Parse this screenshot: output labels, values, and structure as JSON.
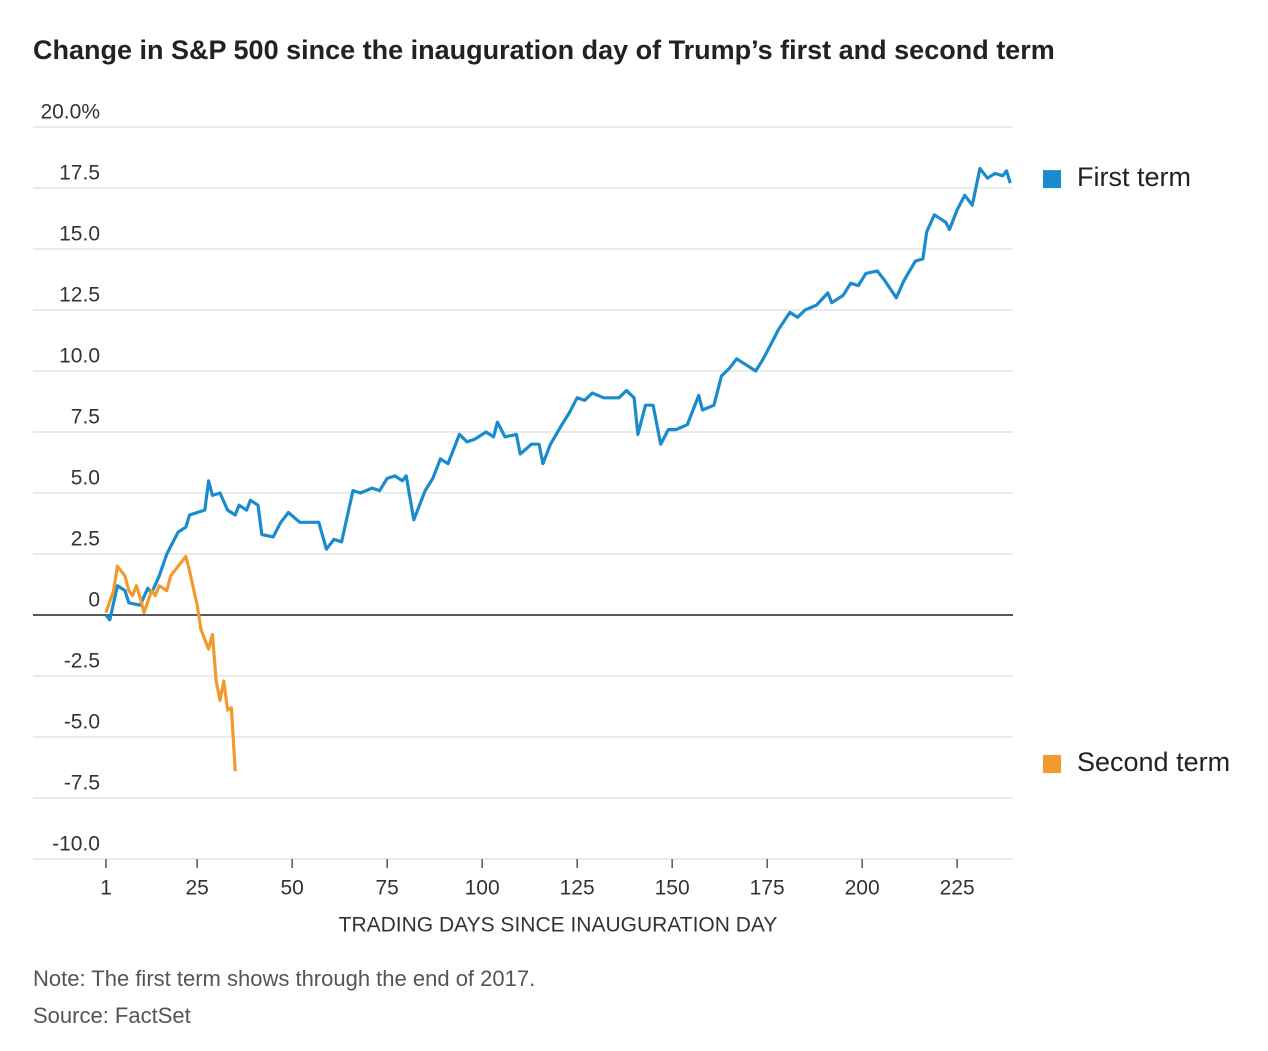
{
  "chart_data": {
    "type": "line",
    "title": "Change in S&P 500 since the inauguration day of Trump’s first and second term",
    "x_label": "TRADING DAYS SINCE INAUGURATION DAY",
    "notes": [
      "Note: The first term shows through the end of 2017.",
      "Source: FactSet"
    ],
    "xlim": [
      -18.2,
      239.7
    ],
    "xticks": [
      1,
      25,
      50,
      75,
      100,
      125,
      150,
      175,
      200,
      225
    ],
    "ylim": [
      -10,
      20
    ],
    "yticks": [
      {
        "value": 20,
        "label": "20.0%"
      },
      17.5,
      {
        "value": 15,
        "label": "15.0"
      },
      12.5,
      {
        "value": 10,
        "label": "10.0"
      },
      7.5,
      {
        "value": 5,
        "label": "5.0"
      },
      2.5,
      0,
      -2.5,
      {
        "value": -5,
        "label": "-5.0"
      },
      -7.5,
      {
        "value": -10,
        "label": "-10.0"
      }
    ],
    "grid": true,
    "legend": "right",
    "series": [
      {
        "name": "First term",
        "color": "#1a8bcc",
        "x": [
          1,
          2,
          4,
          6,
          7,
          10,
          12,
          13,
          15,
          17,
          20,
          22,
          23,
          25,
          27,
          28,
          29,
          31,
          33,
          35,
          36,
          38,
          39,
          41,
          42,
          45,
          47,
          49,
          52,
          54,
          57,
          59,
          61,
          63,
          64,
          66,
          68,
          71,
          73,
          75,
          77,
          79,
          80,
          82,
          85,
          87,
          89,
          91,
          94,
          96,
          98,
          101,
          103,
          104,
          106,
          109,
          110,
          113,
          115,
          116,
          118,
          121,
          123,
          125,
          127,
          129,
          132,
          134,
          136,
          138,
          140,
          141,
          143,
          145,
          147,
          149,
          151,
          154,
          157,
          158,
          161,
          163,
          165,
          167,
          169,
          172,
          174,
          176,
          178,
          181,
          183,
          185,
          188,
          191,
          192,
          195,
          197,
          199,
          201,
          204,
          206,
          209,
          211,
          214,
          216,
          217,
          219,
          222,
          223,
          225,
          227,
          229,
          231,
          233,
          235,
          237,
          238,
          239
        ],
        "values": [
          0,
          -0.2,
          1.2,
          1.0,
          0.5,
          0.4,
          1.1,
          0.9,
          1.6,
          2.5,
          3.4,
          3.6,
          4.1,
          4.2,
          4.3,
          5.5,
          4.9,
          5.0,
          4.3,
          4.1,
          4.5,
          4.3,
          4.7,
          4.5,
          3.3,
          3.2,
          3.8,
          4.2,
          3.8,
          3.8,
          3.8,
          2.7,
          3.1,
          3.0,
          3.7,
          5.1,
          5.0,
          5.2,
          5.1,
          5.6,
          5.7,
          5.5,
          5.7,
          3.9,
          5.1,
          5.6,
          6.4,
          6.2,
          7.4,
          7.1,
          7.2,
          7.5,
          7.3,
          7.9,
          7.3,
          7.4,
          6.6,
          7.0,
          7.0,
          6.2,
          7.0,
          7.8,
          8.3,
          8.9,
          8.8,
          9.1,
          8.9,
          8.9,
          8.9,
          9.2,
          8.9,
          7.4,
          8.6,
          8.6,
          7.0,
          7.6,
          7.6,
          7.8,
          9.0,
          8.4,
          8.6,
          9.8,
          10.1,
          10.5,
          10.3,
          10.0,
          10.5,
          11.1,
          11.7,
          12.4,
          12.2,
          12.5,
          12.7,
          13.2,
          12.8,
          13.1,
          13.6,
          13.5,
          14.0,
          14.1,
          13.7,
          13.0,
          13.7,
          14.5,
          14.6,
          15.7,
          16.4,
          16.1,
          15.8,
          16.6,
          17.2,
          16.8,
          18.3,
          17.9,
          18.1,
          18.0,
          18.2,
          17.7
        ]
      },
      {
        "name": "Second term",
        "color": "#f39a2e",
        "x": [
          1,
          3,
          4,
          6,
          7,
          8,
          9,
          10,
          11,
          13,
          14,
          15,
          17,
          18,
          20,
          22,
          23,
          25,
          26,
          28,
          29,
          30,
          31,
          32,
          33,
          34,
          35
        ],
        "values": [
          0.1,
          1.0,
          2.0,
          1.6,
          1.0,
          0.8,
          1.2,
          0.7,
          0.1,
          1.0,
          0.8,
          1.2,
          1.0,
          1.6,
          2.0,
          2.4,
          1.8,
          0.4,
          -0.6,
          -1.4,
          -0.8,
          -2.7,
          -3.5,
          -2.7,
          -3.9,
          -3.8,
          -6.4
        ]
      }
    ]
  }
}
